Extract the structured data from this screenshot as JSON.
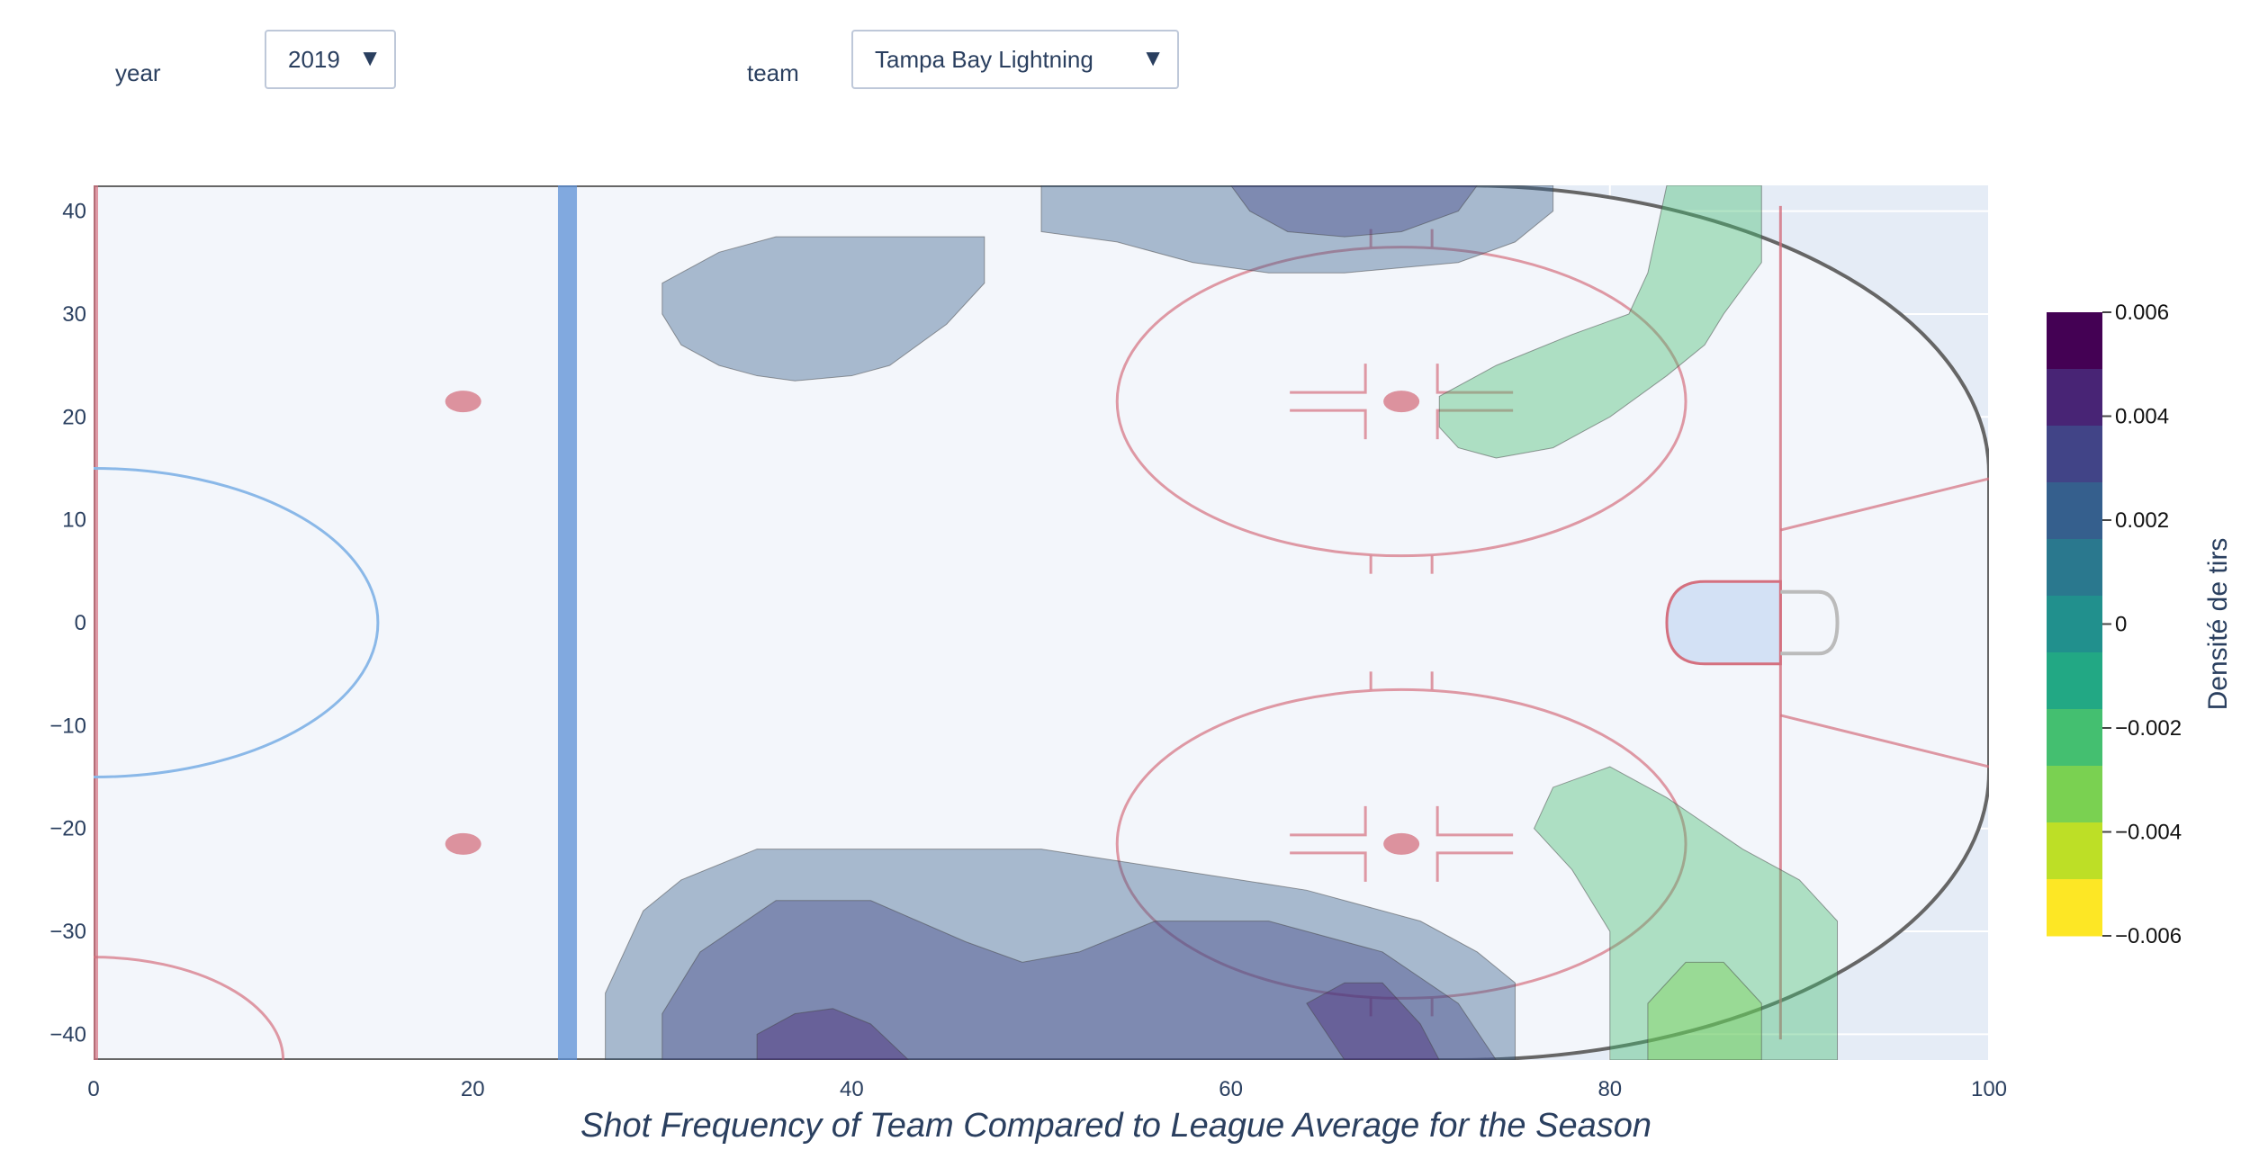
{
  "controls": {
    "year": {
      "label": "year",
      "value": "2019"
    },
    "team": {
      "label": "team",
      "value": "Tampa Bay Lightning"
    },
    "arrow_glyph": "▼"
  },
  "chart_data": {
    "type": "contour",
    "title": "Shot Frequency of Team Compared to League Average for the Season",
    "xlim": [
      0,
      100
    ],
    "ylim": [
      -42.5,
      42.5
    ],
    "x_ticks": [
      0,
      20,
      40,
      60,
      80,
      100
    ],
    "y_ticks": [
      40,
      30,
      20,
      10,
      0,
      -10,
      -20,
      -30,
      -40
    ],
    "x_tick_labels": [
      "0",
      "20",
      "40",
      "60",
      "80",
      "100"
    ],
    "y_tick_labels": [
      "40",
      "30",
      "20",
      "10",
      "0",
      "−10",
      "−20",
      "−30",
      "−40"
    ],
    "grid": true,
    "background_image": "half hockey rink (offensive zone)",
    "colorbar": {
      "title": "Densité de tirs",
      "colorscale": "viridis-reversed",
      "range": [
        -0.006,
        0.006
      ],
      "tick_values": [
        0.006,
        0.004,
        0.002,
        0,
        -0.002,
        -0.004,
        -0.006
      ],
      "tick_labels": [
        "0.006",
        "0.004",
        "0.002",
        "0",
        "−0.002",
        "−0.004",
        "−0.006"
      ],
      "band_colors": [
        "#440154",
        "#482475",
        "#414487",
        "#355f8d",
        "#2a788e",
        "#21908d",
        "#22a884",
        "#44bf70",
        "#7ad151",
        "#bddf26",
        "#fde725"
      ]
    },
    "regions": [
      {
        "level": 0.0015,
        "color": "#355f8d",
        "polygon": [
          [
            50,
            42.5
          ],
          [
            77,
            42.5
          ],
          [
            77,
            40
          ],
          [
            75,
            37
          ],
          [
            72,
            35
          ],
          [
            66,
            34
          ],
          [
            62,
            34
          ],
          [
            58,
            35
          ],
          [
            54,
            37
          ],
          [
            50,
            38
          ]
        ]
      },
      {
        "level": 0.003,
        "color": "#414487",
        "polygon": [
          [
            60,
            42.5
          ],
          [
            73,
            42.5
          ],
          [
            72,
            40
          ],
          [
            69,
            38
          ],
          [
            66,
            37.5
          ],
          [
            63,
            38
          ],
          [
            61,
            40
          ]
        ]
      },
      {
        "level": 0.0015,
        "color": "#355f8d",
        "polygon": [
          [
            33,
            36
          ],
          [
            36,
            37.5
          ],
          [
            47,
            37.5
          ],
          [
            47,
            33
          ],
          [
            45,
            29
          ],
          [
            42,
            25
          ],
          [
            40,
            24
          ],
          [
            37,
            23.5
          ],
          [
            35,
            24
          ],
          [
            33,
            25
          ],
          [
            31,
            27
          ],
          [
            30,
            30
          ],
          [
            30,
            33
          ]
        ]
      },
      {
        "level": -0.0015,
        "color": "#44bf70",
        "polygon": [
          [
            83,
            42.5
          ],
          [
            88,
            42.5
          ],
          [
            88,
            35
          ],
          [
            86,
            30
          ],
          [
            85,
            27
          ],
          [
            83,
            24
          ],
          [
            80,
            20
          ],
          [
            77,
            17
          ],
          [
            74,
            16
          ],
          [
            72,
            17
          ],
          [
            71,
            19
          ],
          [
            71,
            22
          ],
          [
            74,
            25
          ],
          [
            78,
            28
          ],
          [
            81,
            30
          ],
          [
            82,
            34
          ]
        ]
      },
      {
        "level": 0.0015,
        "color": "#355f8d",
        "polygon": [
          [
            27,
            -42.5
          ],
          [
            75,
            -42.5
          ],
          [
            75,
            -35
          ],
          [
            73,
            -32
          ],
          [
            70,
            -29
          ],
          [
            64,
            -26
          ],
          [
            57,
            -24
          ],
          [
            50,
            -22
          ],
          [
            35,
            -22
          ],
          [
            31,
            -25
          ],
          [
            29,
            -28
          ],
          [
            28,
            -32
          ],
          [
            27,
            -36
          ]
        ]
      },
      {
        "level": 0.003,
        "color": "#414487",
        "polygon": [
          [
            30,
            -42.5
          ],
          [
            74,
            -42.5
          ],
          [
            72,
            -37
          ],
          [
            68,
            -32
          ],
          [
            62,
            -29
          ],
          [
            56,
            -29
          ],
          [
            52,
            -32
          ],
          [
            49,
            -33
          ],
          [
            46,
            -31
          ],
          [
            41,
            -27
          ],
          [
            36,
            -27
          ],
          [
            32,
            -32
          ],
          [
            30,
            -38
          ]
        ]
      },
      {
        "level": 0.0045,
        "color": "#482475",
        "polygon": [
          [
            35,
            -42.5
          ],
          [
            43,
            -42.5
          ],
          [
            41,
            -39
          ],
          [
            39,
            -37.5
          ],
          [
            37,
            -38
          ],
          [
            35,
            -40
          ]
        ]
      },
      {
        "level": 0.0045,
        "color": "#482475",
        "polygon": [
          [
            66,
            -42.5
          ],
          [
            71,
            -42.5
          ],
          [
            70,
            -39
          ],
          [
            68,
            -35
          ],
          [
            66,
            -35
          ],
          [
            64,
            -37
          ]
        ]
      },
      {
        "level": -0.0015,
        "color": "#44bf70",
        "polygon": [
          [
            80,
            -42.5
          ],
          [
            92,
            -42.5
          ],
          [
            92,
            -29
          ],
          [
            90,
            -25
          ],
          [
            87,
            -22
          ],
          [
            83,
            -17
          ],
          [
            80,
            -14
          ],
          [
            77,
            -16
          ],
          [
            76,
            -20
          ],
          [
            78,
            -24
          ],
          [
            80,
            -30
          ]
        ]
      },
      {
        "level": -0.003,
        "color": "#7ad151",
        "polygon": [
          [
            82,
            -42.5
          ],
          [
            88,
            -42.5
          ],
          [
            88,
            -37
          ],
          [
            86,
            -33
          ],
          [
            84,
            -33
          ],
          [
            82,
            -37
          ]
        ]
      }
    ]
  }
}
